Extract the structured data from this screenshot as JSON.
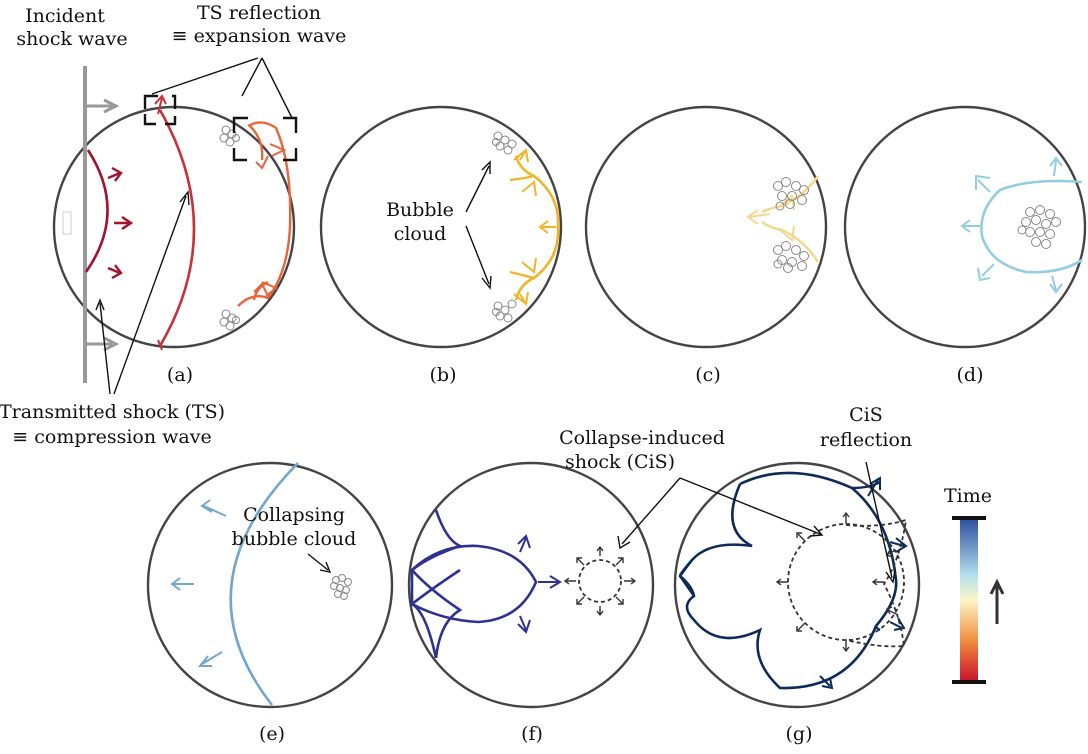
{
  "labels": {
    "incident_line1": "Incident",
    "incident_line2": "shock wave",
    "ts_refl_line1": "TS reflection",
    "ts_refl_line2": "≡ expansion wave",
    "transmitted_line1": "Transmitted shock (TS)",
    "transmitted_line2": "≡ compression wave",
    "bubble_line1": "Bubble",
    "bubble_line2": "cloud",
    "collapsing_line1": "Collapsing",
    "collapsing_line2": "bubble cloud",
    "cis_line1": "Collapse-induced",
    "cis_line2": "shock (CiS)",
    "cis_refl_line1": "CiS",
    "cis_refl_line2": "reflection",
    "time": "Time"
  },
  "panels": [
    "(a)",
    "(b)",
    "(c)",
    "(d)",
    "(e)",
    "(f)",
    "(g)"
  ],
  "colors": {
    "incident": "#999999",
    "ts_dark": "#a3122e",
    "ts_mid": "#c8303a",
    "reflection": "#e8643a",
    "panel_b": "#f0b428",
    "panel_c": "#f5d890",
    "panel_d": "#92cde0",
    "panel_e": "#74a6cc",
    "panel_f": "#2e3192",
    "panel_g": "#0c2a5a",
    "outline": "#444444"
  }
}
